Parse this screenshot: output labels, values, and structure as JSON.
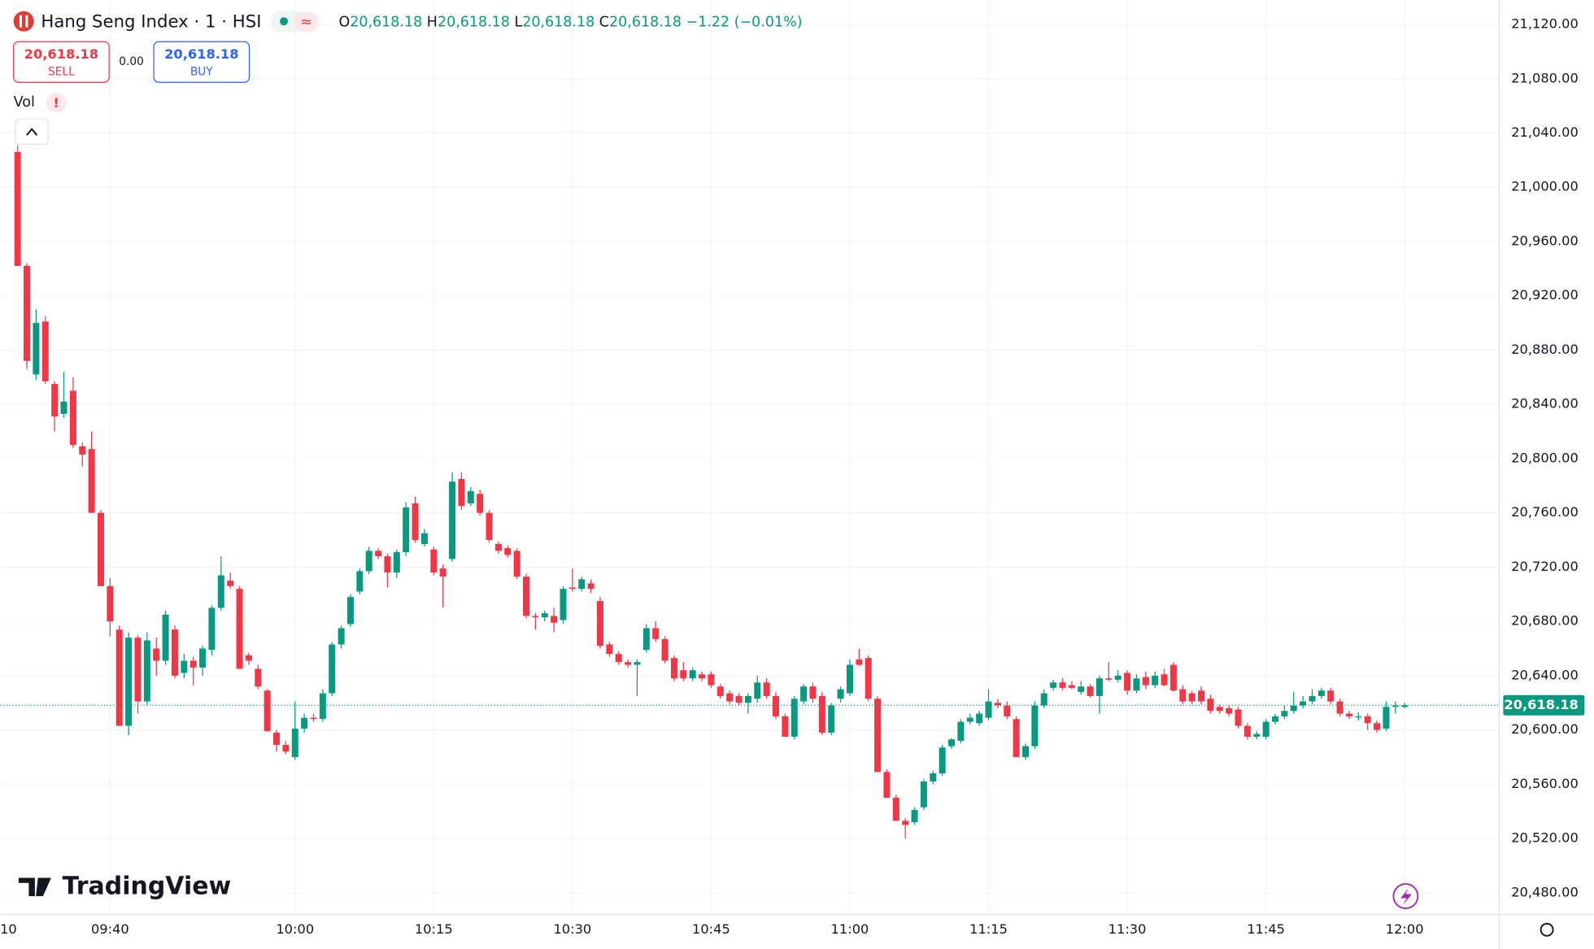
{
  "chart_data": {
    "type": "candlestick",
    "title": "Hang Seng Index · 1 · HSI",
    "ohlc_labels": [
      "O",
      "H",
      "L",
      "C"
    ],
    "ohlc_values": [
      "20,618.18",
      "20,618.18",
      "20,618.18",
      "20,618.18"
    ],
    "change": "−1.22 (−0.01%)",
    "sell_price": "20,618.18",
    "sell_label": "SELL",
    "spread": "0.00",
    "buy_price": "20,618.18",
    "buy_label": "BUY",
    "volume_label": "Vol",
    "brand": "TradingView",
    "up_color": "#089981",
    "down_color": "#f23645",
    "grid": true,
    "last_price": {
      "value": 20618.18,
      "label": "20,618.18"
    },
    "ylim": [
      20464,
      21138
    ],
    "yticks": [
      {
        "value": 20480,
        "label": "20,480.00"
      },
      {
        "value": 20520,
        "label": "20,520.00"
      },
      {
        "value": 20560,
        "label": "20,560.00"
      },
      {
        "value": 20600,
        "label": "20,600.00"
      },
      {
        "value": 20640,
        "label": "20,640.00"
      },
      {
        "value": 20680,
        "label": "20,680.00"
      },
      {
        "value": 20720,
        "label": "20,720.00"
      },
      {
        "value": 20760,
        "label": "20,760.00"
      },
      {
        "value": 20800,
        "label": "20,800.00"
      },
      {
        "value": 20840,
        "label": "20,840.00"
      },
      {
        "value": 20880,
        "label": "20,880.00"
      },
      {
        "value": 20920,
        "label": "20,920.00"
      },
      {
        "value": 20960,
        "label": "20,960.00"
      },
      {
        "value": 21000,
        "label": "21,000.00"
      },
      {
        "value": 21040,
        "label": "21,040.00"
      },
      {
        "value": 21080,
        "label": "21,080.00"
      },
      {
        "value": 21120,
        "label": "21,120.00"
      }
    ],
    "categories": [
      "10",
      null,
      null,
      null,
      null,
      null,
      null,
      null,
      null,
      null,
      "09:40",
      null,
      null,
      null,
      null,
      null,
      null,
      null,
      null,
      null,
      null,
      null,
      null,
      null,
      null,
      null,
      null,
      null,
      null,
      null,
      "10:00",
      null,
      null,
      null,
      null,
      null,
      null,
      null,
      null,
      null,
      null,
      null,
      null,
      null,
      null,
      "10:15",
      null,
      null,
      null,
      null,
      null,
      null,
      null,
      null,
      null,
      null,
      null,
      null,
      null,
      null,
      "10:30",
      null,
      null,
      null,
      null,
      null,
      null,
      null,
      null,
      null,
      null,
      null,
      null,
      null,
      null,
      "10:45",
      null,
      null,
      null,
      null,
      null,
      null,
      null,
      null,
      null,
      null,
      null,
      null,
      null,
      null,
      "11:00",
      null,
      null,
      null,
      null,
      null,
      null,
      null,
      null,
      null,
      null,
      null,
      null,
      null,
      null,
      "11:15",
      null,
      null,
      null,
      null,
      null,
      null,
      null,
      null,
      null,
      null,
      null,
      null,
      null,
      null,
      "11:30",
      null,
      null,
      null,
      null,
      null,
      null,
      null,
      null,
      null,
      null,
      null,
      null,
      null,
      null,
      "11:45",
      null,
      null,
      null,
      null,
      null,
      null,
      null,
      null,
      null,
      null,
      null,
      null,
      null,
      null,
      "12:00"
    ],
    "ohlc": [
      [
        21026,
        21031,
        20942,
        20942
      ],
      [
        20942,
        20944,
        20866,
        20872
      ],
      [
        20862,
        20910,
        20858,
        20900
      ],
      [
        20901,
        20905,
        20855,
        20857
      ],
      [
        20855,
        20857,
        20820,
        20831
      ],
      [
        20833,
        20864,
        20830,
        20842
      ],
      [
        20850,
        20860,
        20808,
        20810
      ],
      [
        20809,
        20812,
        20794,
        20803
      ],
      [
        20807,
        20820,
        20760,
        20760
      ],
      [
        20760,
        20762,
        20706,
        20706
      ],
      [
        20706,
        20712,
        20669,
        20680
      ],
      [
        20674,
        20677,
        20603,
        20603
      ],
      [
        20603,
        20672,
        20596,
        20668
      ],
      [
        20668,
        20670,
        20612,
        20621
      ],
      [
        20621,
        20672,
        20618,
        20666
      ],
      [
        20660,
        20668,
        20640,
        20651
      ],
      [
        20651,
        20688,
        20648,
        20685
      ],
      [
        20674,
        20677,
        20638,
        20640
      ],
      [
        20642,
        20656,
        20638,
        20651
      ],
      [
        20651,
        20654,
        20633,
        20646
      ],
      [
        20646,
        20662,
        20640,
        20660
      ],
      [
        20659,
        20692,
        20655,
        20690
      ],
      [
        20690,
        20728,
        20688,
        20714
      ],
      [
        20710,
        20716,
        20704,
        20706
      ],
      [
        20704,
        20706,
        20645,
        20645
      ],
      [
        20655,
        20657,
        20648,
        20651
      ],
      [
        20645,
        20648,
        20630,
        20632
      ],
      [
        20629,
        20630,
        20599,
        20599
      ],
      [
        20598,
        20600,
        20584,
        20589
      ],
      [
        20589,
        20592,
        20582,
        20584
      ],
      [
        20580,
        20621,
        20578,
        20601
      ],
      [
        20601,
        20612,
        20598,
        20609
      ],
      [
        20609,
        20612,
        20606,
        20608
      ],
      [
        20608,
        20630,
        20606,
        20627
      ],
      [
        20627,
        20665,
        20625,
        20663
      ],
      [
        20663,
        20677,
        20660,
        20675
      ],
      [
        20678,
        20700,
        20676,
        20698
      ],
      [
        20702,
        20719,
        20700,
        20717
      ],
      [
        20717,
        20735,
        20715,
        20732
      ],
      [
        20732,
        20734,
        20726,
        20728
      ],
      [
        20728,
        20730,
        20705,
        20716
      ],
      [
        20716,
        20733,
        20712,
        20731
      ],
      [
        20731,
        20768,
        20728,
        20764
      ],
      [
        20767,
        20772,
        20738,
        20740
      ],
      [
        20737,
        20748,
        20735,
        20745
      ],
      [
        20733,
        20735,
        20714,
        20716
      ],
      [
        20719,
        20722,
        20690,
        20713
      ],
      [
        20726,
        20790,
        20724,
        20783
      ],
      [
        20785,
        20790,
        20762,
        20765
      ],
      [
        20767,
        20779,
        20765,
        20776
      ],
      [
        20774,
        20777,
        20758,
        20760
      ],
      [
        20760,
        20762,
        20738,
        20740
      ],
      [
        20737,
        20739,
        20730,
        20732
      ],
      [
        20734,
        20736,
        20727,
        20729
      ],
      [
        20732,
        20734,
        20711,
        20713
      ],
      [
        20713,
        20715,
        20682,
        20684
      ],
      [
        20684,
        20686,
        20674,
        20683
      ],
      [
        20683,
        20688,
        20680,
        20686
      ],
      [
        20684,
        20690,
        20672,
        20679
      ],
      [
        20681,
        20706,
        20678,
        20704
      ],
      [
        20705,
        20719,
        20702,
        20704
      ],
      [
        20704,
        20713,
        20702,
        20711
      ],
      [
        20708,
        20711,
        20701,
        20704
      ],
      [
        20695,
        20698,
        20660,
        20662
      ],
      [
        20663,
        20665,
        20654,
        20656
      ],
      [
        20656,
        20658,
        20648,
        20650
      ],
      [
        20650,
        20652,
        20646,
        20648
      ],
      [
        20648,
        20652,
        20625,
        20650
      ],
      [
        20659,
        20678,
        20657,
        20675
      ],
      [
        20675,
        20680,
        20665,
        20667
      ],
      [
        20667,
        20669,
        20649,
        20651
      ],
      [
        20653,
        20655,
        20636,
        20638
      ],
      [
        20644,
        20650,
        20636,
        20638
      ],
      [
        20638,
        20646,
        20636,
        20644
      ],
      [
        20641,
        20643,
        20636,
        20638
      ],
      [
        20641,
        20643,
        20631,
        20633
      ],
      [
        20632,
        20634,
        20623,
        20625
      ],
      [
        20627,
        20629,
        20619,
        20621
      ],
      [
        20625,
        20627,
        20618,
        20620
      ],
      [
        20620,
        20627,
        20612,
        20625
      ],
      [
        20623,
        20640,
        20620,
        20635
      ],
      [
        20635,
        20638,
        20623,
        20625
      ],
      [
        20625,
        20628,
        20608,
        20610
      ],
      [
        20610,
        20612,
        20595,
        20595
      ],
      [
        20595,
        20625,
        20593,
        20623
      ],
      [
        20621,
        20634,
        20619,
        20632
      ],
      [
        20632,
        20635,
        20620,
        20623
      ],
      [
        20625,
        20628,
        20596,
        20598
      ],
      [
        20598,
        20620,
        20596,
        20618
      ],
      [
        20623,
        20632,
        20620,
        20630
      ],
      [
        20627,
        20652,
        20625,
        20648
      ],
      [
        20652,
        20660,
        20647,
        20648
      ],
      [
        20653,
        20655,
        20621,
        20623
      ],
      [
        20623,
        20625,
        20569,
        20569
      ],
      [
        20569,
        20571,
        20550,
        20550
      ],
      [
        20550,
        20552,
        20533,
        20533
      ],
      [
        20533,
        20535,
        20520,
        20530
      ],
      [
        20532,
        20543,
        20530,
        20541
      ],
      [
        20543,
        20564,
        20541,
        20562
      ],
      [
        20562,
        20570,
        20560,
        20568
      ],
      [
        20568,
        20589,
        20566,
        20587
      ],
      [
        20588,
        20594,
        20586,
        20593
      ],
      [
        20592,
        20608,
        20590,
        20606
      ],
      [
        20606,
        20612,
        20604,
        20609
      ],
      [
        20605,
        20614,
        20603,
        20612
      ],
      [
        20609,
        20630,
        20607,
        20621
      ],
      [
        20620,
        20623,
        20616,
        20618
      ],
      [
        20618,
        20621,
        20608,
        20610
      ],
      [
        20608,
        20610,
        20580,
        20580
      ],
      [
        20580,
        20590,
        20578,
        20588
      ],
      [
        20588,
        20621,
        20586,
        20618
      ],
      [
        20618,
        20630,
        20616,
        20627
      ],
      [
        20631,
        20637,
        20629,
        20635
      ],
      [
        20635,
        20638,
        20629,
        20631
      ],
      [
        20633,
        20636,
        20630,
        20631
      ],
      [
        20628,
        20636,
        20626,
        20632
      ],
      [
        20632,
        20634,
        20624,
        20625
      ],
      [
        20625,
        20640,
        20612,
        20638
      ],
      [
        20638,
        20650,
        20636,
        20637
      ],
      [
        20637,
        20644,
        20635,
        20640
      ],
      [
        20642,
        20644,
        20626,
        20629
      ],
      [
        20629,
        20641,
        20627,
        20638
      ],
      [
        20639,
        20643,
        20630,
        20633
      ],
      [
        20633,
        20643,
        20631,
        20640
      ],
      [
        20641,
        20645,
        20632,
        20633
      ],
      [
        20648,
        20650,
        20628,
        20629
      ],
      [
        20630,
        20633,
        20619,
        20621
      ],
      [
        20627,
        20629,
        20619,
        20621
      ],
      [
        20629,
        20632,
        20619,
        20621
      ],
      [
        20623,
        20626,
        20612,
        20614
      ],
      [
        20617,
        20619,
        20612,
        20614
      ],
      [
        20616,
        20618,
        20610,
        20612
      ],
      [
        20615,
        20617,
        20601,
        20603
      ],
      [
        20603,
        20605,
        20593,
        20595
      ],
      [
        20595,
        20599,
        20593,
        20597
      ],
      [
        20595,
        20608,
        20593,
        20606
      ],
      [
        20606,
        20612,
        20604,
        20610
      ],
      [
        20610,
        20618,
        20608,
        20614
      ],
      [
        20614,
        20628,
        20612,
        20618
      ],
      [
        20618,
        20625,
        20616,
        20621
      ],
      [
        20621,
        20630,
        20619,
        20625
      ],
      [
        20625,
        20631,
        20623,
        20629
      ],
      [
        20629,
        20631,
        20619,
        20621
      ],
      [
        20621,
        20623,
        20610,
        20612
      ],
      [
        20612,
        20614,
        20608,
        20610
      ],
      [
        20610,
        20613,
        20607,
        20610
      ],
      [
        20610,
        20612,
        20600,
        20605
      ],
      [
        20605,
        20607,
        20598,
        20600
      ],
      [
        20601,
        20621,
        20599,
        20617
      ],
      [
        20617,
        20621,
        20612,
        20618
      ],
      [
        20617,
        20620,
        20616,
        20618.18
      ]
    ]
  }
}
